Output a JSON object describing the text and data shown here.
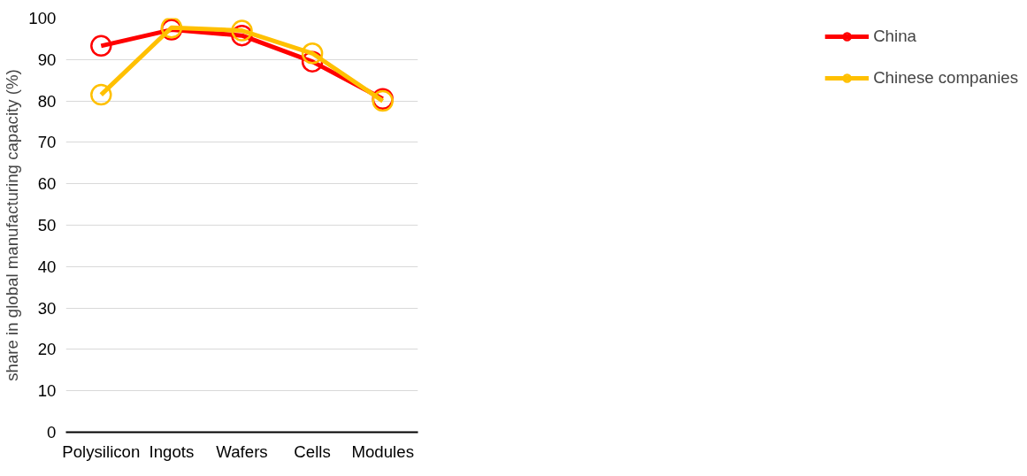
{
  "chart_data": {
    "type": "line",
    "ylabel": "share in global manufacturing capacity (%)",
    "categories": [
      "Polysilicon",
      "Ingots",
      "Wafers",
      "Cells",
      "Modules"
    ],
    "series": [
      {
        "name": "China",
        "color": "#ff0000",
        "values": [
          93.3,
          97.2,
          95.8,
          89.5,
          80.5
        ]
      },
      {
        "name": "Chinese companies",
        "color": "#ffc000",
        "values": [
          81.5,
          97.7,
          97,
          91.5,
          80
        ]
      }
    ],
    "ylim": [
      0,
      100
    ],
    "yticks": [
      0,
      10,
      20,
      30,
      40,
      50,
      60,
      70,
      80,
      90,
      100
    ],
    "grid": "y",
    "legend": "right",
    "marker": "circle"
  }
}
